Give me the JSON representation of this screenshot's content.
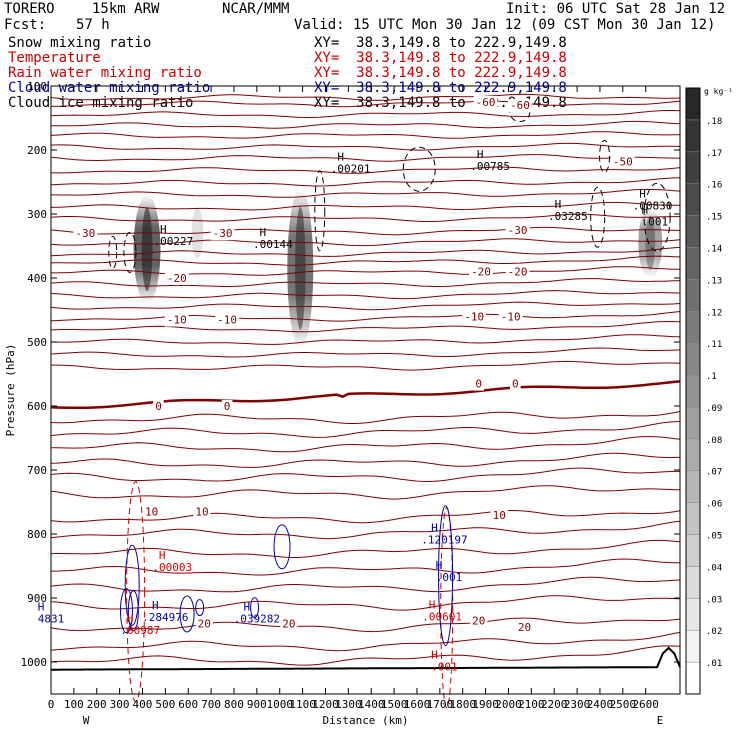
{
  "header": {
    "model": "TORERO",
    "resolution": "15km ARW",
    "institution": "NCAR/MMM",
    "init": "Init: 06 UTC Sat 28 Jan 12",
    "fcst_label": "Fcst:",
    "fcst_value": "57 h",
    "valid": "Valid: 15 UTC Mon 30 Jan 12 (09 CST Mon 30 Jan 12)"
  },
  "fields": [
    {
      "name": "Snow mixing ratio",
      "xy": "XY=  38.3,149.8 to 222.9,149.8",
      "color": "#000000"
    },
    {
      "name": "Temperature",
      "xy": "XY=  38.3,149.8 to 222.9,149.8",
      "color": "#cc0000"
    },
    {
      "name": "Rain water mixing ratio",
      "xy": "XY=  38.3,149.8 to 222.9,149.8",
      "color": "#cc0000"
    },
    {
      "name": "Cloud water mixing ratio",
      "xy": "XY=  38.3,149.8 to 222.9,149.8",
      "color": "#000099"
    },
    {
      "name": "Cloud ice mixing ratio",
      "xy": "XY=  38.3,149.8 to 222.9,149.8",
      "color": "#000000"
    }
  ],
  "colorbar": {
    "unit": "g kg⁻¹",
    "values": [
      0.01,
      0.02,
      0.03,
      0.04,
      0.05,
      0.06,
      0.07,
      0.08,
      0.09,
      0.1,
      0.11,
      0.12,
      0.13,
      0.14,
      0.15,
      0.16,
      0.17,
      0.18
    ],
    "labels": [
      ".01",
      ".02",
      ".03",
      ".04",
      ".05",
      ".06",
      ".07",
      ".08",
      ".09",
      ".1",
      ".11",
      ".12",
      ".13",
      ".14",
      ".15",
      ".16",
      ".17",
      ".18"
    ]
  },
  "chart_data": {
    "type": "contour cross-section",
    "xlabel": "Distance (km)",
    "ylabel": "Pressure (hPa)",
    "xlim": [
      0,
      2750
    ],
    "ylim": [
      1050,
      100
    ],
    "x_ticks": [
      0,
      100,
      200,
      300,
      400,
      500,
      600,
      700,
      800,
      900,
      1000,
      1100,
      1200,
      1300,
      1400,
      1500,
      1600,
      1700,
      1800,
      1900,
      2000,
      2100,
      2200,
      2300,
      2400,
      2500,
      2600
    ],
    "y_ticks": [
      100,
      200,
      300,
      400,
      500,
      600,
      700,
      800,
      900,
      1000
    ],
    "left_end": "W",
    "right_end": "E",
    "temperature_isotherms_C": [
      {
        "label": "-60",
        "p_start": 125,
        "p_end": 130,
        "label_positions": [
          [
            1900,
            125
          ],
          [
            2050,
            130
          ]
        ]
      },
      {
        "label": "-50",
        "p_start": 170,
        "p_end": 215,
        "label_positions": [
          [
            2500,
            218
          ]
        ]
      },
      {
        "label": "-30",
        "p_start": 330,
        "p_end": 325,
        "label_positions": [
          [
            150,
            330
          ],
          [
            750,
            330
          ],
          [
            2040,
            325
          ]
        ]
      },
      {
        "label": "-20",
        "p_start": 392,
        "p_end": 385,
        "label_positions": [
          [
            550,
            400
          ],
          [
            1880,
            390
          ],
          [
            2040,
            390
          ]
        ]
      },
      {
        "label": "-10",
        "p_start": 463,
        "p_end": 455,
        "label_positions": [
          [
            550,
            465
          ],
          [
            770,
            465
          ],
          [
            1850,
            460
          ],
          [
            2010,
            460
          ]
        ]
      },
      {
        "label": "0",
        "p_start": 602,
        "p_end": 564,
        "label_positions": [
          [
            470,
            600
          ],
          [
            770,
            600
          ],
          [
            1870,
            565
          ],
          [
            2030,
            565
          ]
        ]
      },
      {
        "label": "10",
        "p_start": 775,
        "p_end": 757,
        "label_positions": [
          [
            440,
            765
          ],
          [
            660,
            765
          ],
          [
            1960,
            770
          ]
        ]
      },
      {
        "label": "20",
        "p_start": 945,
        "p_end": 930,
        "label_positions": [
          [
            670,
            940
          ],
          [
            1040,
            940
          ],
          [
            1870,
            935
          ],
          [
            2070,
            945
          ]
        ]
      }
    ],
    "snow_shading": [
      {
        "x": 420,
        "p_top": 270,
        "p_bottom": 440,
        "max_g_per_kg": 0.17
      },
      {
        "x": 1090,
        "p_top": 260,
        "p_bottom": 510,
        "max_g_per_kg": 0.15
      },
      {
        "x": 2620,
        "p_top": 290,
        "p_bottom": 400,
        "max_g_per_kg": 0.1
      }
    ],
    "cloud_ice_maxima": [
      {
        "x": 535,
        "p": 345,
        "label": ".00227"
      },
      {
        "x": 970,
        "p": 350,
        "label": ".00144"
      },
      {
        "x": 1310,
        "p": 232,
        "label": ".00201"
      },
      {
        "x": 1920,
        "p": 228,
        "label": ".00785"
      },
      {
        "x": 2260,
        "p": 306,
        "label": ".03285"
      },
      {
        "x": 2630,
        "p": 290,
        "label": ".00830"
      },
      {
        "x": 2640,
        "p": 315,
        "label": ".001"
      }
    ],
    "rain_water_maxima": [
      {
        "x": 530,
        "p": 855,
        "label": ".00003"
      },
      {
        "x": 390,
        "p": 953,
        "label": ".00987"
      },
      {
        "x": 1710,
        "p": 932,
        "label": ".00601"
      },
      {
        "x": 1720,
        "p": 1010,
        "label": ".001"
      }
    ],
    "cloud_water_maxima": [
      {
        "x": 500,
        "p": 933,
        "label": ".284976"
      },
      {
        "x": 1720,
        "p": 812,
        "label": ".120197"
      },
      {
        "x": 900,
        "p": 935,
        "label": ".039282"
      },
      {
        "x": 0,
        "p": 935,
        "label": "4831"
      },
      {
        "x": 1740,
        "p": 870,
        "label": ".001"
      }
    ]
  }
}
